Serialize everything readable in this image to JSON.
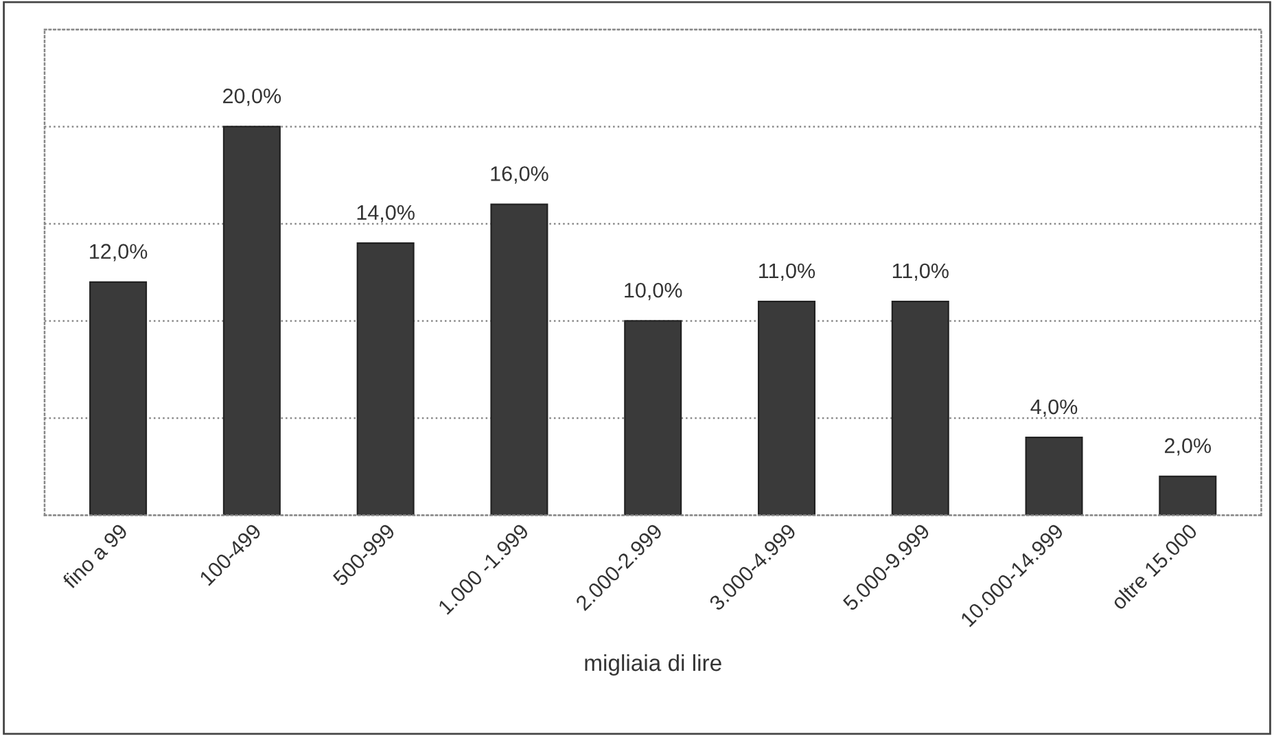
{
  "chart_data": {
    "type": "bar",
    "xlabel": "migliaia di lire",
    "categories": [
      "fino a 99",
      "100-499",
      "500-999",
      "1.000 -1.999",
      "2.000-2.999",
      "3.000-4.999",
      "5.000-9.999",
      "10.000-14.999",
      "oltre 15.000"
    ],
    "values": [
      12,
      20,
      14,
      16,
      10,
      11,
      11,
      4,
      2
    ],
    "value_labels": [
      "12,0%",
      "20,0%",
      "14,0%",
      "16,0%",
      "10,0%",
      "11,0%",
      "11,0%",
      "4,0%",
      "2,0%"
    ],
    "color": "#3a3a3a",
    "ylim": [
      0,
      25
    ],
    "yticks": [
      {
        "value": 0,
        "label": null
      },
      {
        "value": 5,
        "label": null
      },
      {
        "value": 10,
        "label": null
      },
      {
        "value": 15,
        "label": null
      },
      {
        "value": 20,
        "label": null
      },
      {
        "value": 25,
        "label": null
      }
    ],
    "tick_labels": "x",
    "grid": "y"
  }
}
